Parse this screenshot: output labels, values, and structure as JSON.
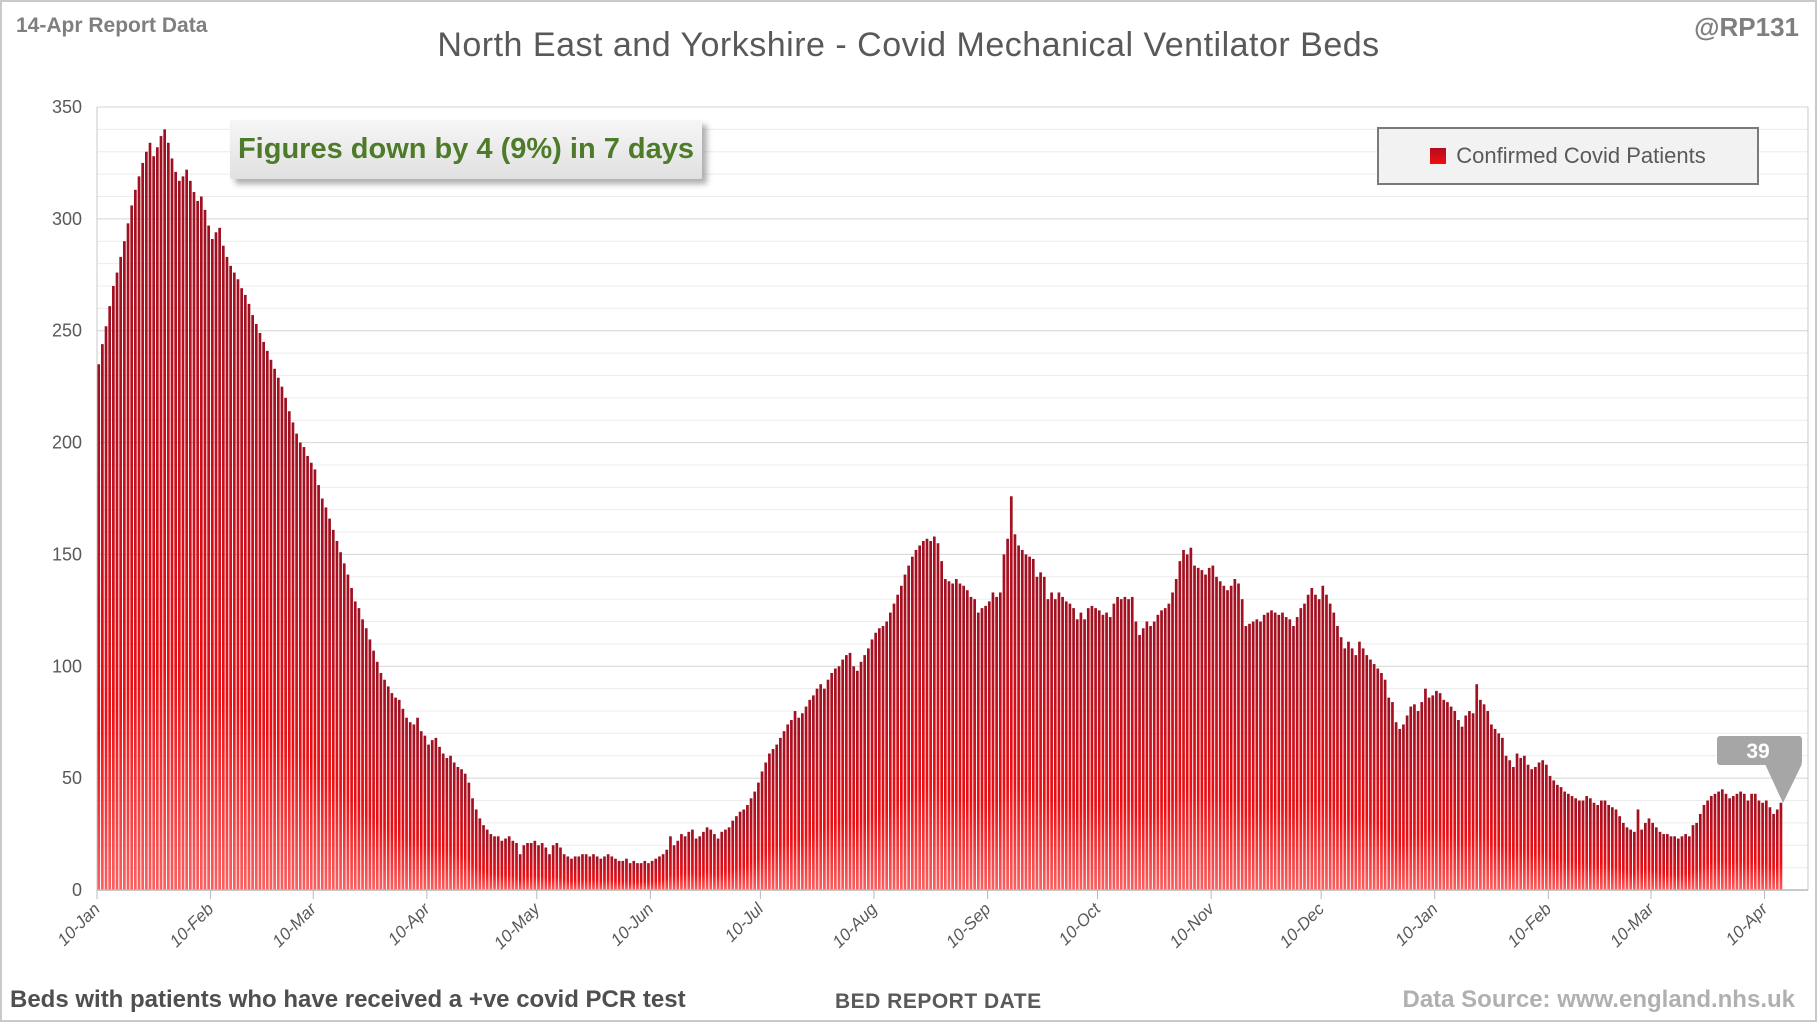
{
  "page": {
    "report_label": "14-Apr Report Data",
    "title": "North East and Yorkshire - Covid Mechanical Ventilator Beds",
    "handle": "@RP131",
    "annotation": "Figures down by 4 (9%) in 7 days",
    "footer_left": "Beds with patients who have received a +ve covid PCR test",
    "footer_right": "Data Source: www.england.nhs.uk"
  },
  "legend": {
    "label": "Confirmed Covid Patients",
    "marker_color": "#e8101e"
  },
  "callout": {
    "value": "39"
  },
  "chart_data": {
    "type": "bar",
    "title": "North East and Yorkshire - Covid Mechanical Ventilator Beds",
    "series_name": "Confirmed Covid Patients",
    "xlabel": "BED REPORT DATE",
    "ylabel": "",
    "ylim": [
      0,
      350
    ],
    "y_ticks": [
      0,
      50,
      100,
      150,
      200,
      250,
      300,
      350
    ],
    "grid_minor_step": 10,
    "legend_position": "top-right",
    "bar_color_top": "#9e1021",
    "bar_color_bottom": "#fc5f5f",
    "x_ticks": [
      {
        "label": "10-Jan",
        "day": 0
      },
      {
        "label": "10-Feb",
        "day": 31
      },
      {
        "label": "10-Mar",
        "day": 59
      },
      {
        "label": "10-Apr",
        "day": 90
      },
      {
        "label": "10-May",
        "day": 120
      },
      {
        "label": "10-Jun",
        "day": 151
      },
      {
        "label": "10-Jul",
        "day": 181
      },
      {
        "label": "10-Aug",
        "day": 212
      },
      {
        "label": "10-Sep",
        "day": 243
      },
      {
        "label": "10-Oct",
        "day": 273
      },
      {
        "label": "10-Nov",
        "day": 304
      },
      {
        "label": "10-Dec",
        "day": 334
      },
      {
        "label": "10-Jan",
        "day": 365
      },
      {
        "label": "10-Feb",
        "day": 396
      },
      {
        "label": "10-Mar",
        "day": 424
      },
      {
        "label": "10-Apr",
        "day": 455
      }
    ],
    "last_value": 39,
    "values": [
      235,
      244,
      252,
      261,
      270,
      276,
      283,
      290,
      298,
      306,
      313,
      319,
      325,
      330,
      334,
      328,
      332,
      337,
      340,
      334,
      327,
      321,
      317,
      319,
      322,
      317,
      312,
      308,
      310,
      304,
      297,
      291,
      294,
      296,
      288,
      283,
      279,
      276,
      273,
      269,
      266,
      262,
      257,
      253,
      249,
      245,
      241,
      237,
      233,
      229,
      225,
      220,
      214,
      209,
      204,
      200,
      198,
      194,
      191,
      188,
      181,
      175,
      171,
      166,
      161,
      156,
      151,
      146,
      141,
      135,
      129,
      126,
      121,
      117,
      112,
      107,
      102,
      97,
      94,
      91,
      88,
      86,
      85,
      81,
      77,
      75,
      74,
      77,
      71,
      69,
      65,
      67,
      68,
      64,
      61,
      59,
      60,
      57,
      55,
      54,
      52,
      48,
      41,
      36,
      32,
      29,
      27,
      25,
      24,
      24,
      22,
      23,
      24,
      22,
      21,
      16,
      20,
      21,
      21,
      22,
      20,
      21,
      19,
      16,
      20,
      21,
      19,
      16,
      15,
      14,
      15,
      15,
      16,
      16,
      15,
      16,
      15,
      14,
      15,
      16,
      15,
      14,
      13,
      13,
      14,
      12,
      13,
      12,
      12,
      13,
      12,
      13,
      14,
      15,
      16,
      18,
      24,
      20,
      22,
      25,
      24,
      26,
      27,
      23,
      24,
      26,
      28,
      27,
      25,
      23,
      26,
      27,
      28,
      31,
      33,
      35,
      36,
      38,
      41,
      44,
      48,
      53,
      57,
      61,
      63,
      65,
      68,
      71,
      74,
      76,
      80,
      77,
      79,
      82,
      85,
      87,
      90,
      92,
      90,
      94,
      97,
      99,
      100,
      103,
      105,
      106,
      100,
      98,
      102,
      105,
      108,
      112,
      115,
      117,
      118,
      120,
      124,
      128,
      132,
      136,
      141,
      145,
      149,
      152,
      154,
      156,
      157,
      156,
      158,
      155,
      147,
      139,
      138,
      137,
      139,
      137,
      136,
      134,
      131,
      130,
      124,
      126,
      127,
      129,
      133,
      131,
      133,
      150,
      157,
      176,
      159,
      154,
      152,
      150,
      149,
      148,
      140,
      142,
      140,
      130,
      133,
      130,
      133,
      131,
      129,
      128,
      126,
      121,
      124,
      121,
      126,
      127,
      126,
      125,
      123,
      124,
      122,
      128,
      131,
      130,
      131,
      130,
      131,
      120,
      114,
      117,
      120,
      118,
      120,
      123,
      125,
      126,
      128,
      133,
      139,
      147,
      152,
      150,
      153,
      145,
      144,
      143,
      141,
      144,
      145,
      140,
      138,
      136,
      134,
      136,
      139,
      137,
      130,
      118,
      119,
      120,
      121,
      120,
      123,
      124,
      125,
      124,
      123,
      124,
      122,
      121,
      118,
      122,
      126,
      128,
      132,
      135,
      132,
      130,
      136,
      132,
      128,
      124,
      118,
      113,
      108,
      111,
      108,
      105,
      111,
      108,
      105,
      103,
      101,
      99,
      97,
      94,
      86,
      84,
      75,
      72,
      74,
      78,
      82,
      83,
      80,
      84,
      90,
      86,
      87,
      89,
      88,
      85,
      84,
      82,
      80,
      76,
      73,
      78,
      80,
      79,
      92,
      85,
      83,
      80,
      74,
      72,
      70,
      68,
      60,
      58,
      55,
      61,
      59,
      60,
      56,
      54,
      55,
      57,
      58,
      56,
      51,
      49,
      47,
      46,
      44,
      43,
      42,
      41,
      40,
      40,
      42,
      41,
      39,
      38,
      40,
      40,
      38,
      37,
      36,
      33,
      30,
      28,
      27,
      26,
      36,
      27,
      30,
      32,
      30,
      28,
      26,
      25,
      25,
      24,
      24,
      23,
      24,
      25,
      24,
      29,
      30,
      34,
      38,
      40,
      42,
      43,
      44,
      45,
      43,
      41,
      42,
      43,
      44,
      43,
      40,
      43,
      43,
      40,
      39,
      40,
      37,
      34,
      36,
      39
    ]
  }
}
